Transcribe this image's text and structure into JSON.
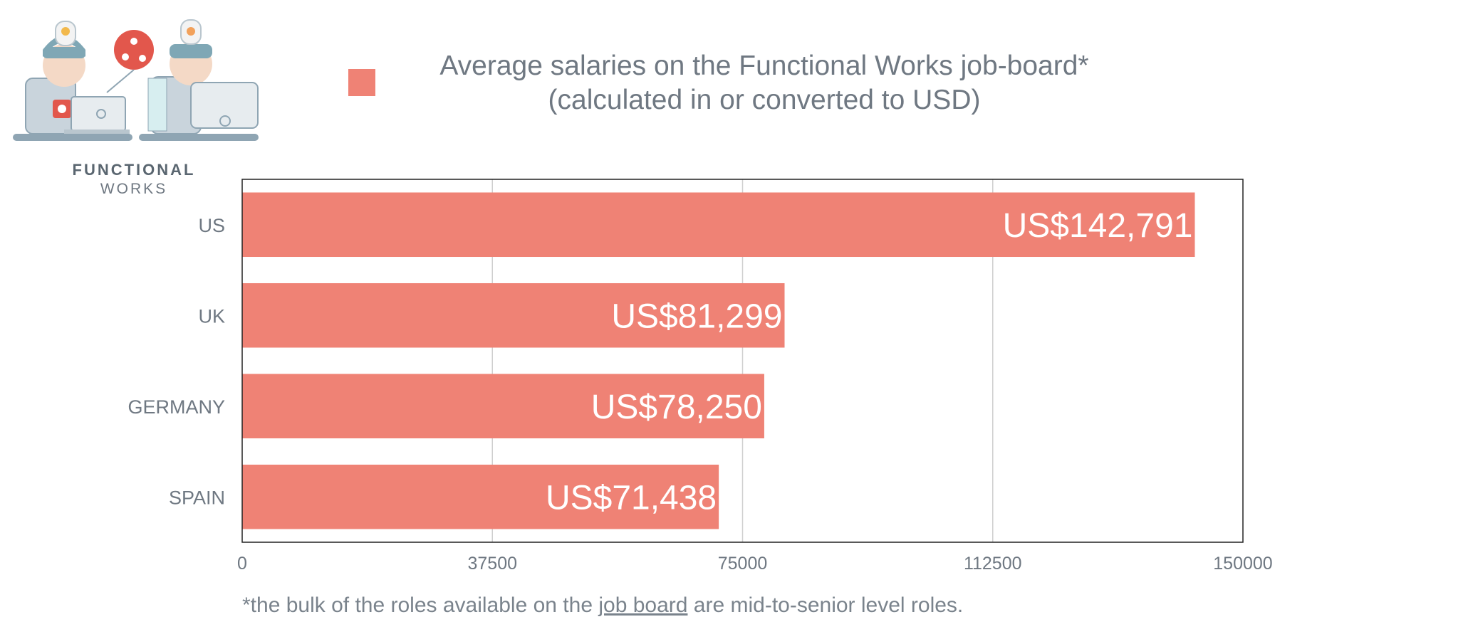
{
  "logo": {
    "line1": "FUNCTIONAL",
    "line2": "WORKS",
    "icon": "two-developers-at-computers-illustration"
  },
  "legend": {
    "swatch_color": "#ef8275"
  },
  "footnote": {
    "before": "*the bulk of the roles available on the ",
    "link": "job board",
    "after": " are mid-to-senior level roles."
  },
  "chart_data": {
    "type": "bar",
    "orientation": "horizontal",
    "title": [
      "Average salaries on the Functional Works job-board*",
      "(calculated in or converted to USD)"
    ],
    "categories": [
      "US",
      "UK",
      "GERMANY",
      "SPAIN"
    ],
    "values": [
      142791,
      81299,
      78250,
      71438
    ],
    "value_labels": [
      "US$142,791",
      "US$81,299",
      "US$78,250",
      "US$71,438"
    ],
    "xlim": [
      0,
      150000
    ],
    "xticks": [
      0,
      37500,
      75000,
      112500,
      150000
    ],
    "grid": "vertical",
    "legend": "top",
    "bar_color": "#ef8275"
  }
}
